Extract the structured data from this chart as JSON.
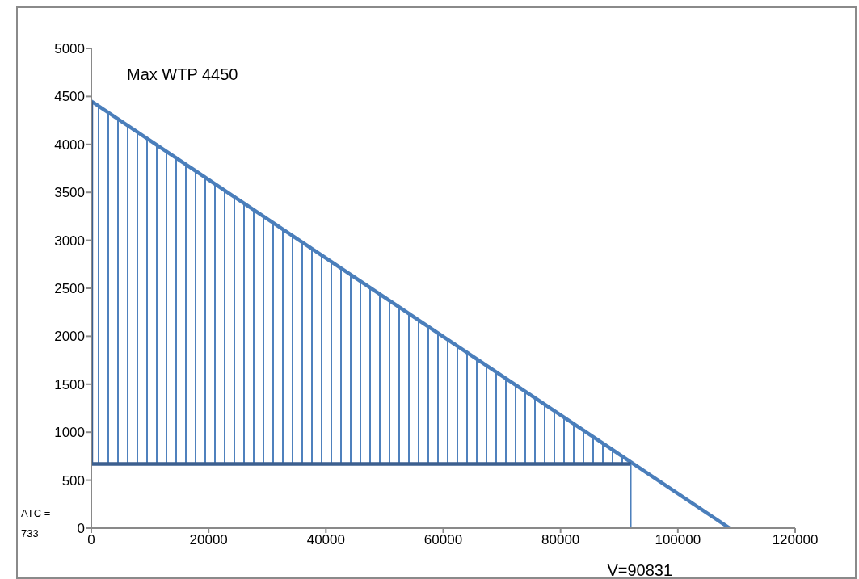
{
  "chart_data": {
    "type": "line",
    "xlim": [
      0,
      120000
    ],
    "xticks": [
      0,
      20000,
      40000,
      60000,
      80000,
      100000,
      120000
    ],
    "ylim": [
      0,
      5000
    ],
    "yticks": [
      0,
      500,
      1000,
      1500,
      2000,
      2500,
      3000,
      3500,
      4000,
      4500,
      5000
    ],
    "grid": false,
    "marker": "none",
    "series": [
      {
        "type": "area",
        "color": "#4f81bd",
        "x": [
          0,
          92000
        ],
        "values": [
          4450,
          670
        ]
      },
      {
        "color": "#4a7ebb",
        "x": [
          0,
          108830
        ],
        "values": [
          4450,
          0
        ]
      },
      {
        "color": "#3c5f8f",
        "x": [
          0,
          0
        ],
        "values": [
          670,
          4450
        ]
      },
      {
        "color": "#3c5f8f",
        "x": [
          0,
          92000
        ],
        "values": [
          670,
          670
        ]
      },
      {
        "color": "#4a7ebb",
        "x": [
          92000,
          92000
        ],
        "values": [
          0,
          670
        ]
      }
    ],
    "annotations": [
      {
        "text": "Max WTP 4450",
        "x": 0,
        "y": 4450
      },
      "ATC = 733",
      {
        "text": "V=90831",
        "x": 92000,
        "y": 0
      }
    ]
  }
}
